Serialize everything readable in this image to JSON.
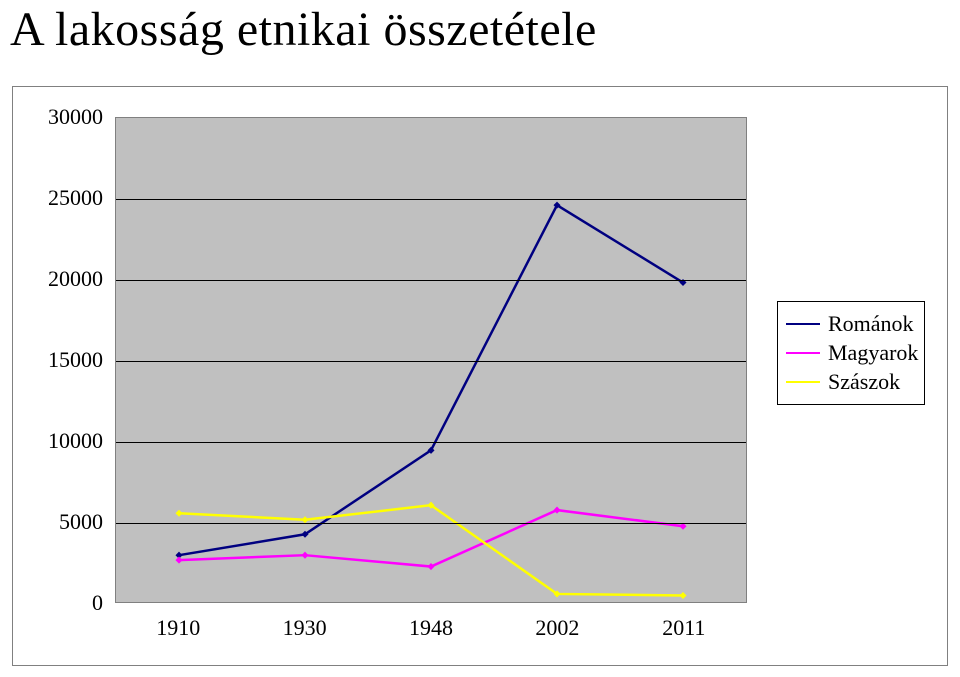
{
  "title": "A lakosság etnikai összetétele",
  "chart": {
    "type": "line",
    "background_color": "#ffffff",
    "plot_background_color": "#c0c0c0",
    "grid_color": "#000000",
    "border_color": "#808080",
    "ylim": [
      0,
      30000
    ],
    "ytick_step": 5000,
    "yticks": [
      0,
      5000,
      10000,
      15000,
      20000,
      25000,
      30000
    ],
    "xcategories": [
      "1910",
      "1930",
      "1948",
      "2002",
      "2011"
    ],
    "label_fontsize": 22,
    "label_color": "#000000",
    "line_width": 2.5,
    "series": [
      {
        "name": "Románok",
        "color": "#000080",
        "values": [
          2900,
          4200,
          9400,
          24600,
          19800
        ]
      },
      {
        "name": "Magyarok",
        "color": "#ff00ff",
        "values": [
          2600,
          2900,
          2200,
          5700,
          4700
        ]
      },
      {
        "name": "Szászok",
        "color": "#ffff00",
        "values": [
          5500,
          5100,
          6000,
          500,
          400
        ]
      }
    ],
    "legend": {
      "position": "right",
      "border_color": "#000000",
      "background_color": "#ffffff",
      "fontsize": 22
    }
  }
}
